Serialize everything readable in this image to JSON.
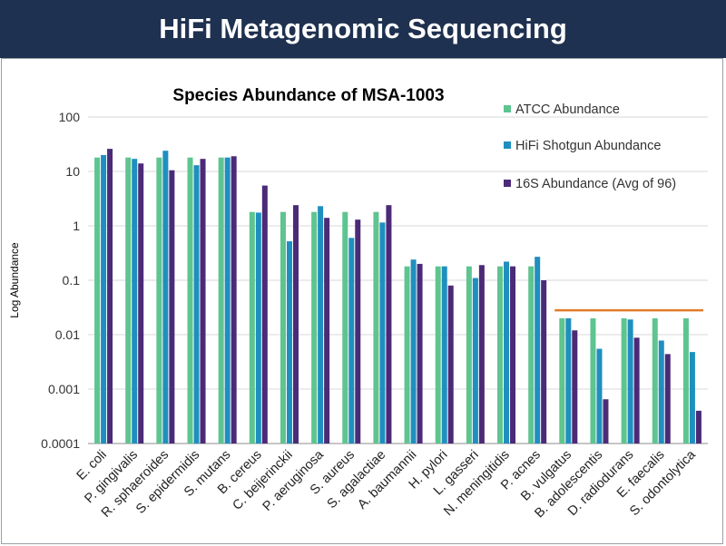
{
  "banner": {
    "title": "HiFi Metagenomic Sequencing"
  },
  "chart_data": {
    "type": "bar",
    "title": "Species Abundance of MSA-1003",
    "xlabel": "",
    "ylabel": "Log Abundance",
    "yscale": "log",
    "ylim": [
      0.0001,
      100
    ],
    "yticks": [
      "100",
      "10",
      "1",
      "0.1",
      "0.01",
      "0.001",
      "0.0001"
    ],
    "categories": [
      "E. coli",
      "P. gingivalis",
      "R. sphaeroides",
      "S. epidermidis",
      "S. mutans",
      "B. cereus",
      "C. beijerinckii",
      "P. aeruginosa",
      "S. aureus",
      "S. agalactiae",
      "A. baumannii",
      "H. pylori",
      "L. gasseri",
      "N. meningitidis",
      "P. acnes",
      "B. vulgatus",
      "B. adolescentis",
      "D. radiodurans",
      "E. faecalis",
      "S. odontolytica"
    ],
    "series": [
      {
        "name": "ATCC Abundance",
        "color": "#5ec490",
        "values": [
          18,
          18,
          18,
          18,
          18,
          1.8,
          1.8,
          1.8,
          1.8,
          1.8,
          0.18,
          0.18,
          0.18,
          0.18,
          0.18,
          0.02,
          0.02,
          0.02,
          0.02,
          0.02
        ]
      },
      {
        "name": "HiFi Shotgun Abundance",
        "color": "#1f8fbf",
        "values": [
          20,
          17,
          24,
          13,
          18,
          1.75,
          0.52,
          2.3,
          0.6,
          1.15,
          0.24,
          0.18,
          0.11,
          0.22,
          0.27,
          0.02,
          0.0055,
          0.019,
          0.0078,
          0.0048
        ]
      },
      {
        "name": "16S Abundance (Avg of 96)",
        "color": "#4b2a78",
        "values": [
          26,
          14,
          10.5,
          17,
          19,
          5.5,
          2.4,
          1.4,
          1.3,
          2.4,
          0.2,
          0.08,
          0.19,
          0.18,
          0.1,
          0.012,
          0.00065,
          0.0088,
          0.0044,
          0.0004
        ]
      }
    ],
    "reference_line": {
      "value": 0.028,
      "from_category": "B. vulgatus",
      "to_category": "S. odontolytica",
      "color": "#e07b2a"
    },
    "legend_position": "top-right",
    "grid": true
  }
}
